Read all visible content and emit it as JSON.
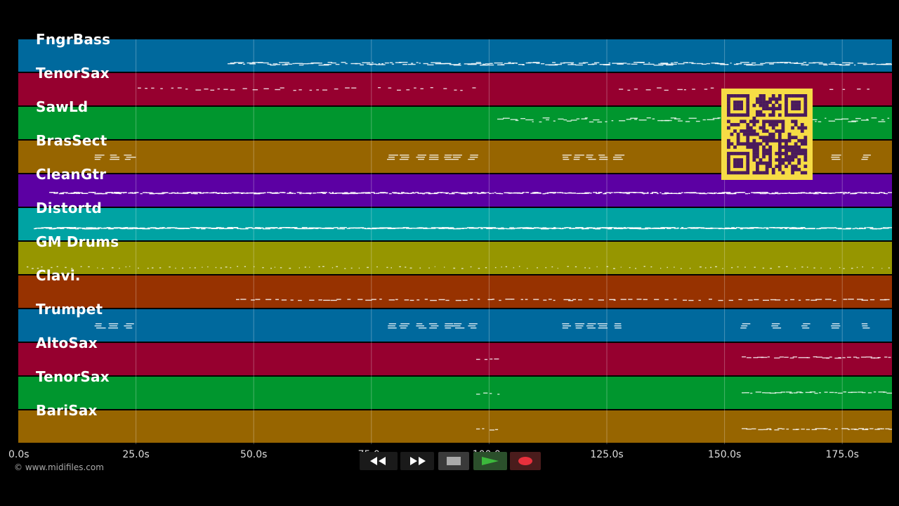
{
  "tracks": [
    {
      "name": "FngrBass",
      "color": "#00699d"
    },
    {
      "name": "TenorSax",
      "color": "#96002f"
    },
    {
      "name": "SawLd",
      "color": "#00962e"
    },
    {
      "name": "BrasSect",
      "color": "#976500"
    },
    {
      "name": "CleanGtr",
      "color": "#5c00a3"
    },
    {
      "name": "Distortd",
      "color": "#00a3a3"
    },
    {
      "name": "GM Drums",
      "color": "#969600"
    },
    {
      "name": "Clavi.",
      "color": "#973200"
    },
    {
      "name": "Trumpet",
      "color": "#00699d"
    },
    {
      "name": "AltoSax",
      "color": "#96002f"
    },
    {
      "name": "TenorSax",
      "color": "#00962e"
    },
    {
      "name": "BariSax",
      "color": "#976500"
    }
  ],
  "timeline": {
    "ticks": [
      "0.0s",
      "25.0s",
      "50.0s",
      "75.0s",
      "100.0s",
      "125.0s",
      "150.0s",
      "175.0s"
    ]
  },
  "copyright": "© www.midifiles.com",
  "transport": {
    "rewind_icon": "rewind-icon",
    "fast_forward_icon": "fast-forward-icon",
    "stop_icon": "stop-icon",
    "play_icon": "play-icon",
    "record_icon": "record-icon"
  },
  "qr_code": {
    "color": "#f6dc45",
    "icon": "qr-code"
  }
}
